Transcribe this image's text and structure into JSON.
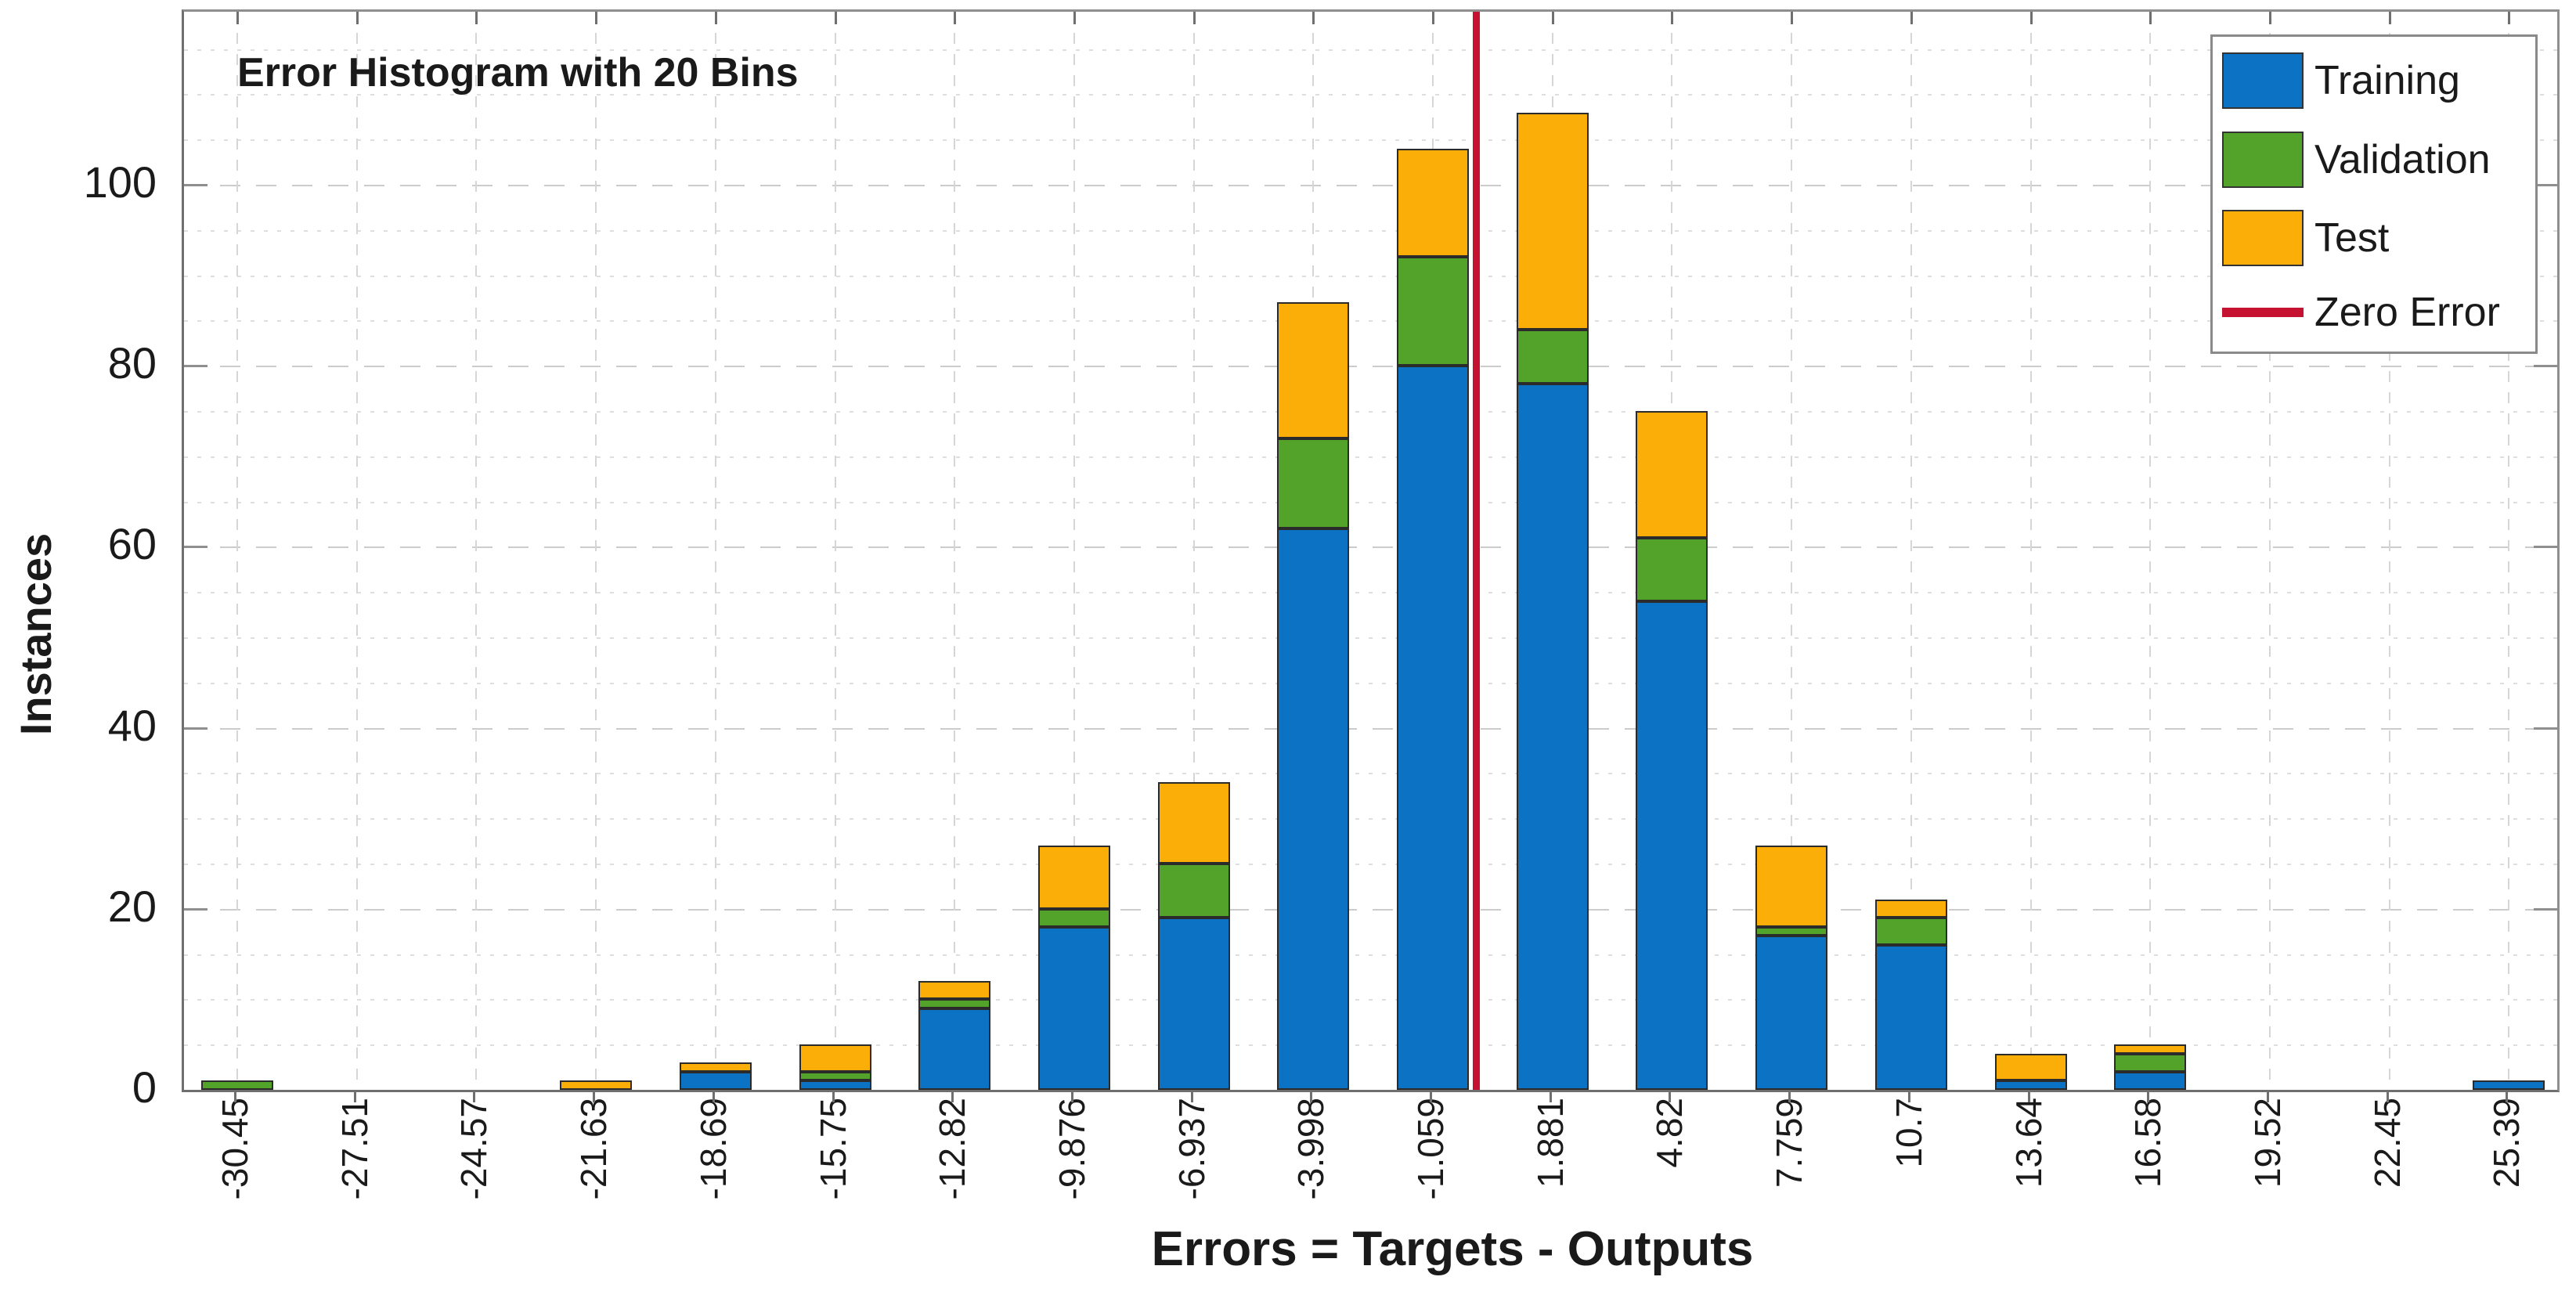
{
  "figure": {
    "title": "Error Histogram with 20 Bins",
    "background": "#ffffff"
  },
  "axes": {
    "xlabel": "Errors = Targets - Outputs",
    "ylabel": "Instances",
    "y_ticks": [
      0,
      20,
      40,
      60,
      80,
      100
    ],
    "y_minor_step": 5,
    "grid": true
  },
  "legend": {
    "position": "top-right",
    "items": [
      {
        "label": "Training",
        "color": "#0B72C4",
        "swatch": "box"
      },
      {
        "label": "Validation",
        "color": "#53A32B",
        "swatch": "box"
      },
      {
        "label": "Test",
        "color": "#FBAE08",
        "swatch": "box"
      },
      {
        "label": "Zero Error",
        "color": "#C41230",
        "swatch": "line"
      }
    ]
  },
  "chart_data": {
    "type": "bar",
    "stacked": true,
    "title": "Error Histogram with 20 Bins",
    "xlabel": "Errors = Targets - Outputs",
    "ylabel": "Instances",
    "ylim": [
      0,
      119
    ],
    "y_major": 20,
    "y_minor": 5,
    "legend_position": "top-right",
    "grid": "major-and-minor",
    "categories": [
      "-30.45",
      "-27.51",
      "-24.57",
      "-21.63",
      "-18.69",
      "-15.75",
      "-12.82",
      "-9.876",
      "-6.937",
      "-3.998",
      "-1.059",
      "1.881",
      "4.82",
      "7.759",
      "10.7",
      "13.64",
      "16.58",
      "19.52",
      "22.45",
      "25.39"
    ],
    "series": [
      {
        "name": "Training",
        "color": "#0B72C4",
        "values": [
          0,
          0,
          0,
          0,
          2,
          1,
          9,
          18,
          19,
          62,
          80,
          78,
          54,
          17,
          16,
          1,
          2,
          0,
          0,
          1
        ]
      },
      {
        "name": "Validation",
        "color": "#53A32B",
        "values": [
          1,
          0,
          0,
          0,
          0,
          1,
          1,
          2,
          6,
          10,
          12,
          6,
          7,
          1,
          3,
          0,
          2,
          0,
          0,
          0
        ]
      },
      {
        "name": "Test",
        "color": "#FBAE08",
        "values": [
          0,
          0,
          0,
          1,
          1,
          3,
          2,
          7,
          9,
          15,
          12,
          24,
          14,
          9,
          2,
          3,
          1,
          0,
          0,
          0
        ]
      }
    ],
    "totals": [
      1,
      0,
      0,
      1,
      3,
      5,
      12,
      27,
      34,
      87,
      104,
      108,
      75,
      27,
      21,
      4,
      5,
      0,
      0,
      1
    ],
    "zero_error_line": {
      "label": "Zero Error",
      "color": "#C41230",
      "between_bins": [
        "-1.059",
        "1.881"
      ],
      "fraction_from_left_bin": 0.36
    }
  }
}
